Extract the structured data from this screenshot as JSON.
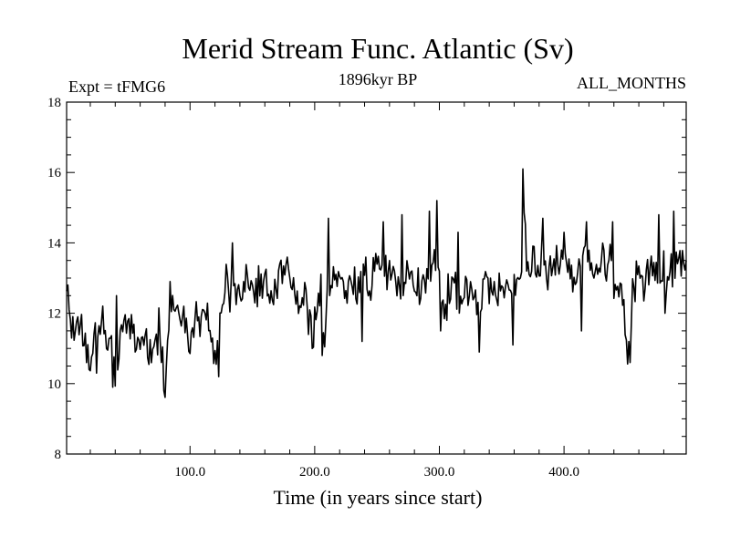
{
  "chart_data": {
    "type": "line",
    "title": "Merid Stream Func. Atlantic (Sv)",
    "subtitle_left": "Expt = tFMG6",
    "subtitle_center": "1896kyr BP",
    "subtitle_right": "ALL_MONTHS",
    "xlabel": "Time (in years since start)",
    "ylabel": "",
    "xlim": [
      1,
      498
    ],
    "ylim": [
      8,
      18
    ],
    "xticks": [
      100,
      200,
      300,
      400
    ],
    "xtick_labels": [
      "100.0",
      "200.0",
      "300.0",
      "400.0"
    ],
    "yticks": [
      8,
      10,
      12,
      14,
      16,
      18
    ],
    "ytick_labels": [
      "8",
      "10",
      "12",
      "14",
      "16",
      "18"
    ],
    "grid": false,
    "series": [
      {
        "name": "Merid Stream Func. Atlantic",
        "anchors_x": [
          1,
          5,
          10,
          15,
          20,
          25,
          30,
          35,
          40,
          45,
          50,
          55,
          60,
          65,
          70,
          75,
          80,
          85,
          90,
          95,
          100,
          105,
          110,
          115,
          120,
          123,
          125,
          130,
          135,
          140,
          145,
          150,
          155,
          160,
          165,
          170,
          175,
          180,
          185,
          190,
          195,
          200,
          205,
          208,
          210,
          215,
          220,
          225,
          230,
          235,
          240,
          245,
          250,
          255,
          260,
          265,
          270,
          275,
          280,
          285,
          290,
          295,
          300,
          305,
          310,
          315,
          320,
          325,
          330,
          335,
          340,
          345,
          350,
          355,
          360,
          366,
          368,
          370,
          375,
          380,
          385,
          390,
          395,
          400,
          405,
          410,
          415,
          420,
          425,
          430,
          435,
          440,
          445,
          450,
          452,
          455,
          460,
          465,
          470,
          475,
          480,
          485,
          490,
          495,
          498
        ],
        "anchors_y": [
          12.8,
          11.3,
          11.9,
          11.4,
          10.5,
          11.6,
          11.8,
          11.2,
          10.2,
          11.9,
          11.6,
          11.4,
          11.1,
          11.3,
          10.8,
          11.5,
          10.2,
          11.9,
          12.1,
          11.6,
          11.3,
          11.8,
          12.0,
          11.6,
          10.6,
          11.4,
          12.5,
          12.8,
          12.6,
          12.3,
          13.0,
          12.6,
          12.8,
          13.1,
          12.4,
          12.9,
          13.3,
          12.9,
          12.2,
          12.7,
          12.0,
          11.6,
          12.6,
          11.1,
          12.5,
          13.1,
          13.2,
          12.8,
          13.0,
          12.6,
          13.1,
          12.8,
          13.4,
          12.9,
          13.2,
          13.0,
          12.7,
          13.3,
          13.0,
          12.8,
          13.1,
          13.5,
          12.7,
          12.3,
          12.9,
          12.6,
          12.4,
          12.8,
          12.2,
          12.6,
          12.8,
          12.5,
          12.9,
          12.4,
          12.8,
          13.2,
          15.5,
          13.0,
          13.6,
          13.3,
          13.0,
          13.4,
          13.2,
          13.5,
          13.1,
          13.3,
          13.6,
          13.2,
          13.4,
          13.3,
          13.5,
          13.0,
          12.7,
          11.2,
          11.0,
          12.6,
          13.1,
          13.0,
          13.4,
          12.7,
          13.2,
          13.0,
          13.4,
          13.6,
          13.1
        ],
        "noise_amplitude": 0.75,
        "spikes": [
          {
            "x": 2,
            "y": 12.8
          },
          {
            "x": 25,
            "y": 10.3
          },
          {
            "x": 38,
            "y": 9.9
          },
          {
            "x": 41,
            "y": 12.5
          },
          {
            "x": 79,
            "y": 9.8
          },
          {
            "x": 84,
            "y": 12.9
          },
          {
            "x": 123,
            "y": 10.2
          },
          {
            "x": 134,
            "y": 14.0
          },
          {
            "x": 198,
            "y": 11.0
          },
          {
            "x": 206,
            "y": 10.8
          },
          {
            "x": 211,
            "y": 14.7
          },
          {
            "x": 238,
            "y": 11.2
          },
          {
            "x": 255,
            "y": 14.6
          },
          {
            "x": 270,
            "y": 14.8
          },
          {
            "x": 292,
            "y": 14.9
          },
          {
            "x": 298,
            "y": 15.2
          },
          {
            "x": 301,
            "y": 11.5
          },
          {
            "x": 306,
            "y": 11.8
          },
          {
            "x": 315,
            "y": 14.3
          },
          {
            "x": 332,
            "y": 10.9
          },
          {
            "x": 359,
            "y": 11.1
          },
          {
            "x": 367,
            "y": 16.1
          },
          {
            "x": 383,
            "y": 14.7
          },
          {
            "x": 400,
            "y": 14.3
          },
          {
            "x": 414,
            "y": 11.5
          },
          {
            "x": 418,
            "y": 14.6
          },
          {
            "x": 439,
            "y": 14.6
          },
          {
            "x": 453,
            "y": 10.6
          },
          {
            "x": 476,
            "y": 14.8
          },
          {
            "x": 481,
            "y": 12.0
          },
          {
            "x": 488,
            "y": 14.9
          }
        ]
      }
    ]
  }
}
